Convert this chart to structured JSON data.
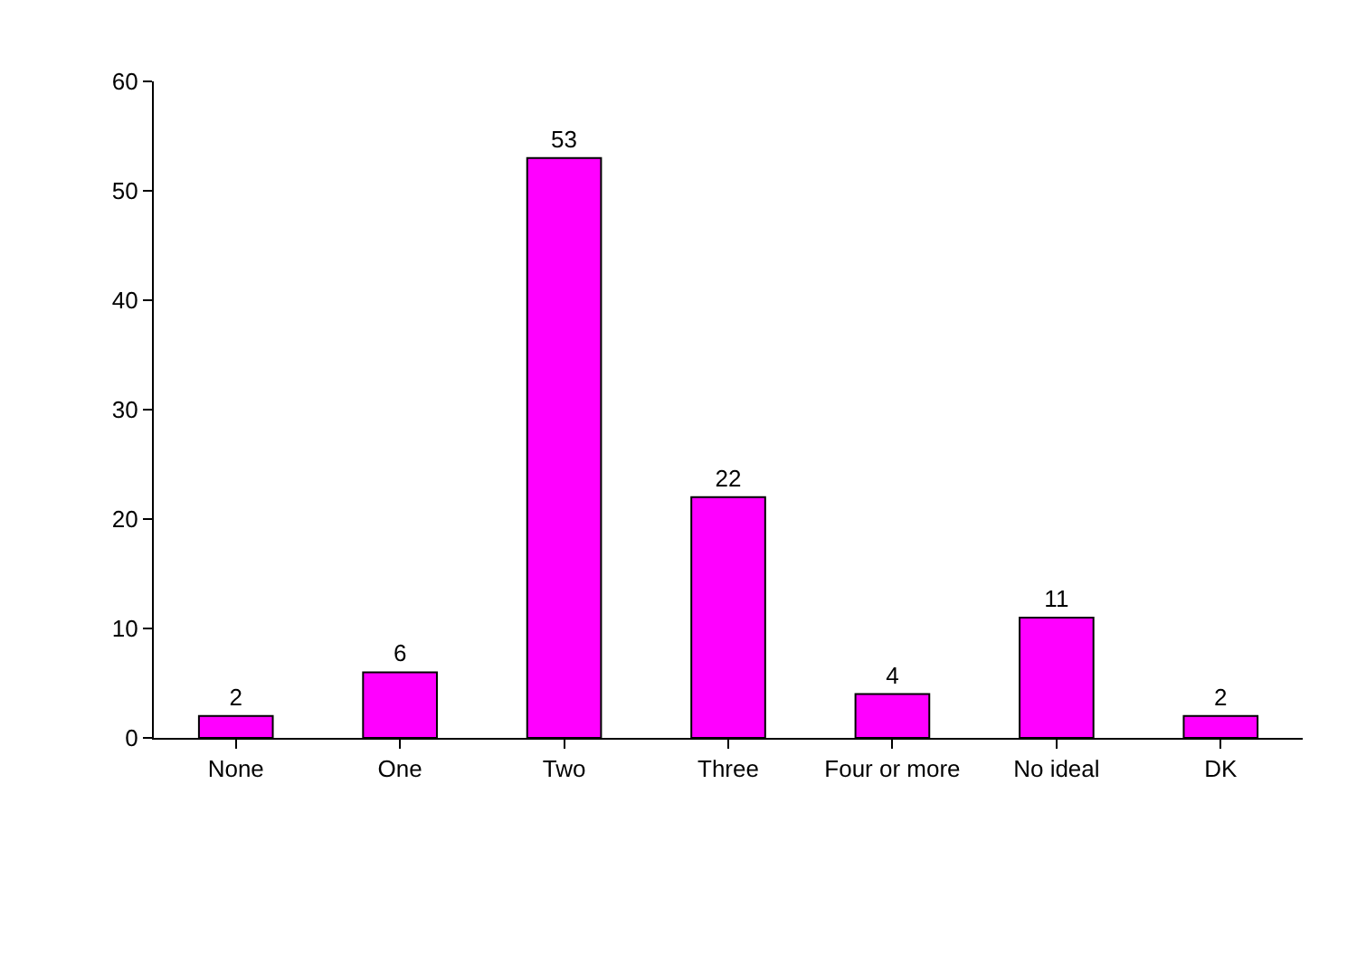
{
  "chart_data": {
    "type": "bar",
    "categories": [
      "None",
      "One",
      "Two",
      "Three",
      "Four or more",
      "No ideal",
      "DK"
    ],
    "values": [
      2,
      6,
      53,
      22,
      4,
      11,
      2
    ],
    "color": "#ff00ff",
    "ylim": [
      0,
      60
    ],
    "yticks": [
      0,
      10,
      20,
      30,
      40,
      50,
      60
    ],
    "grid": false,
    "data_labels": true,
    "legend": false
  }
}
